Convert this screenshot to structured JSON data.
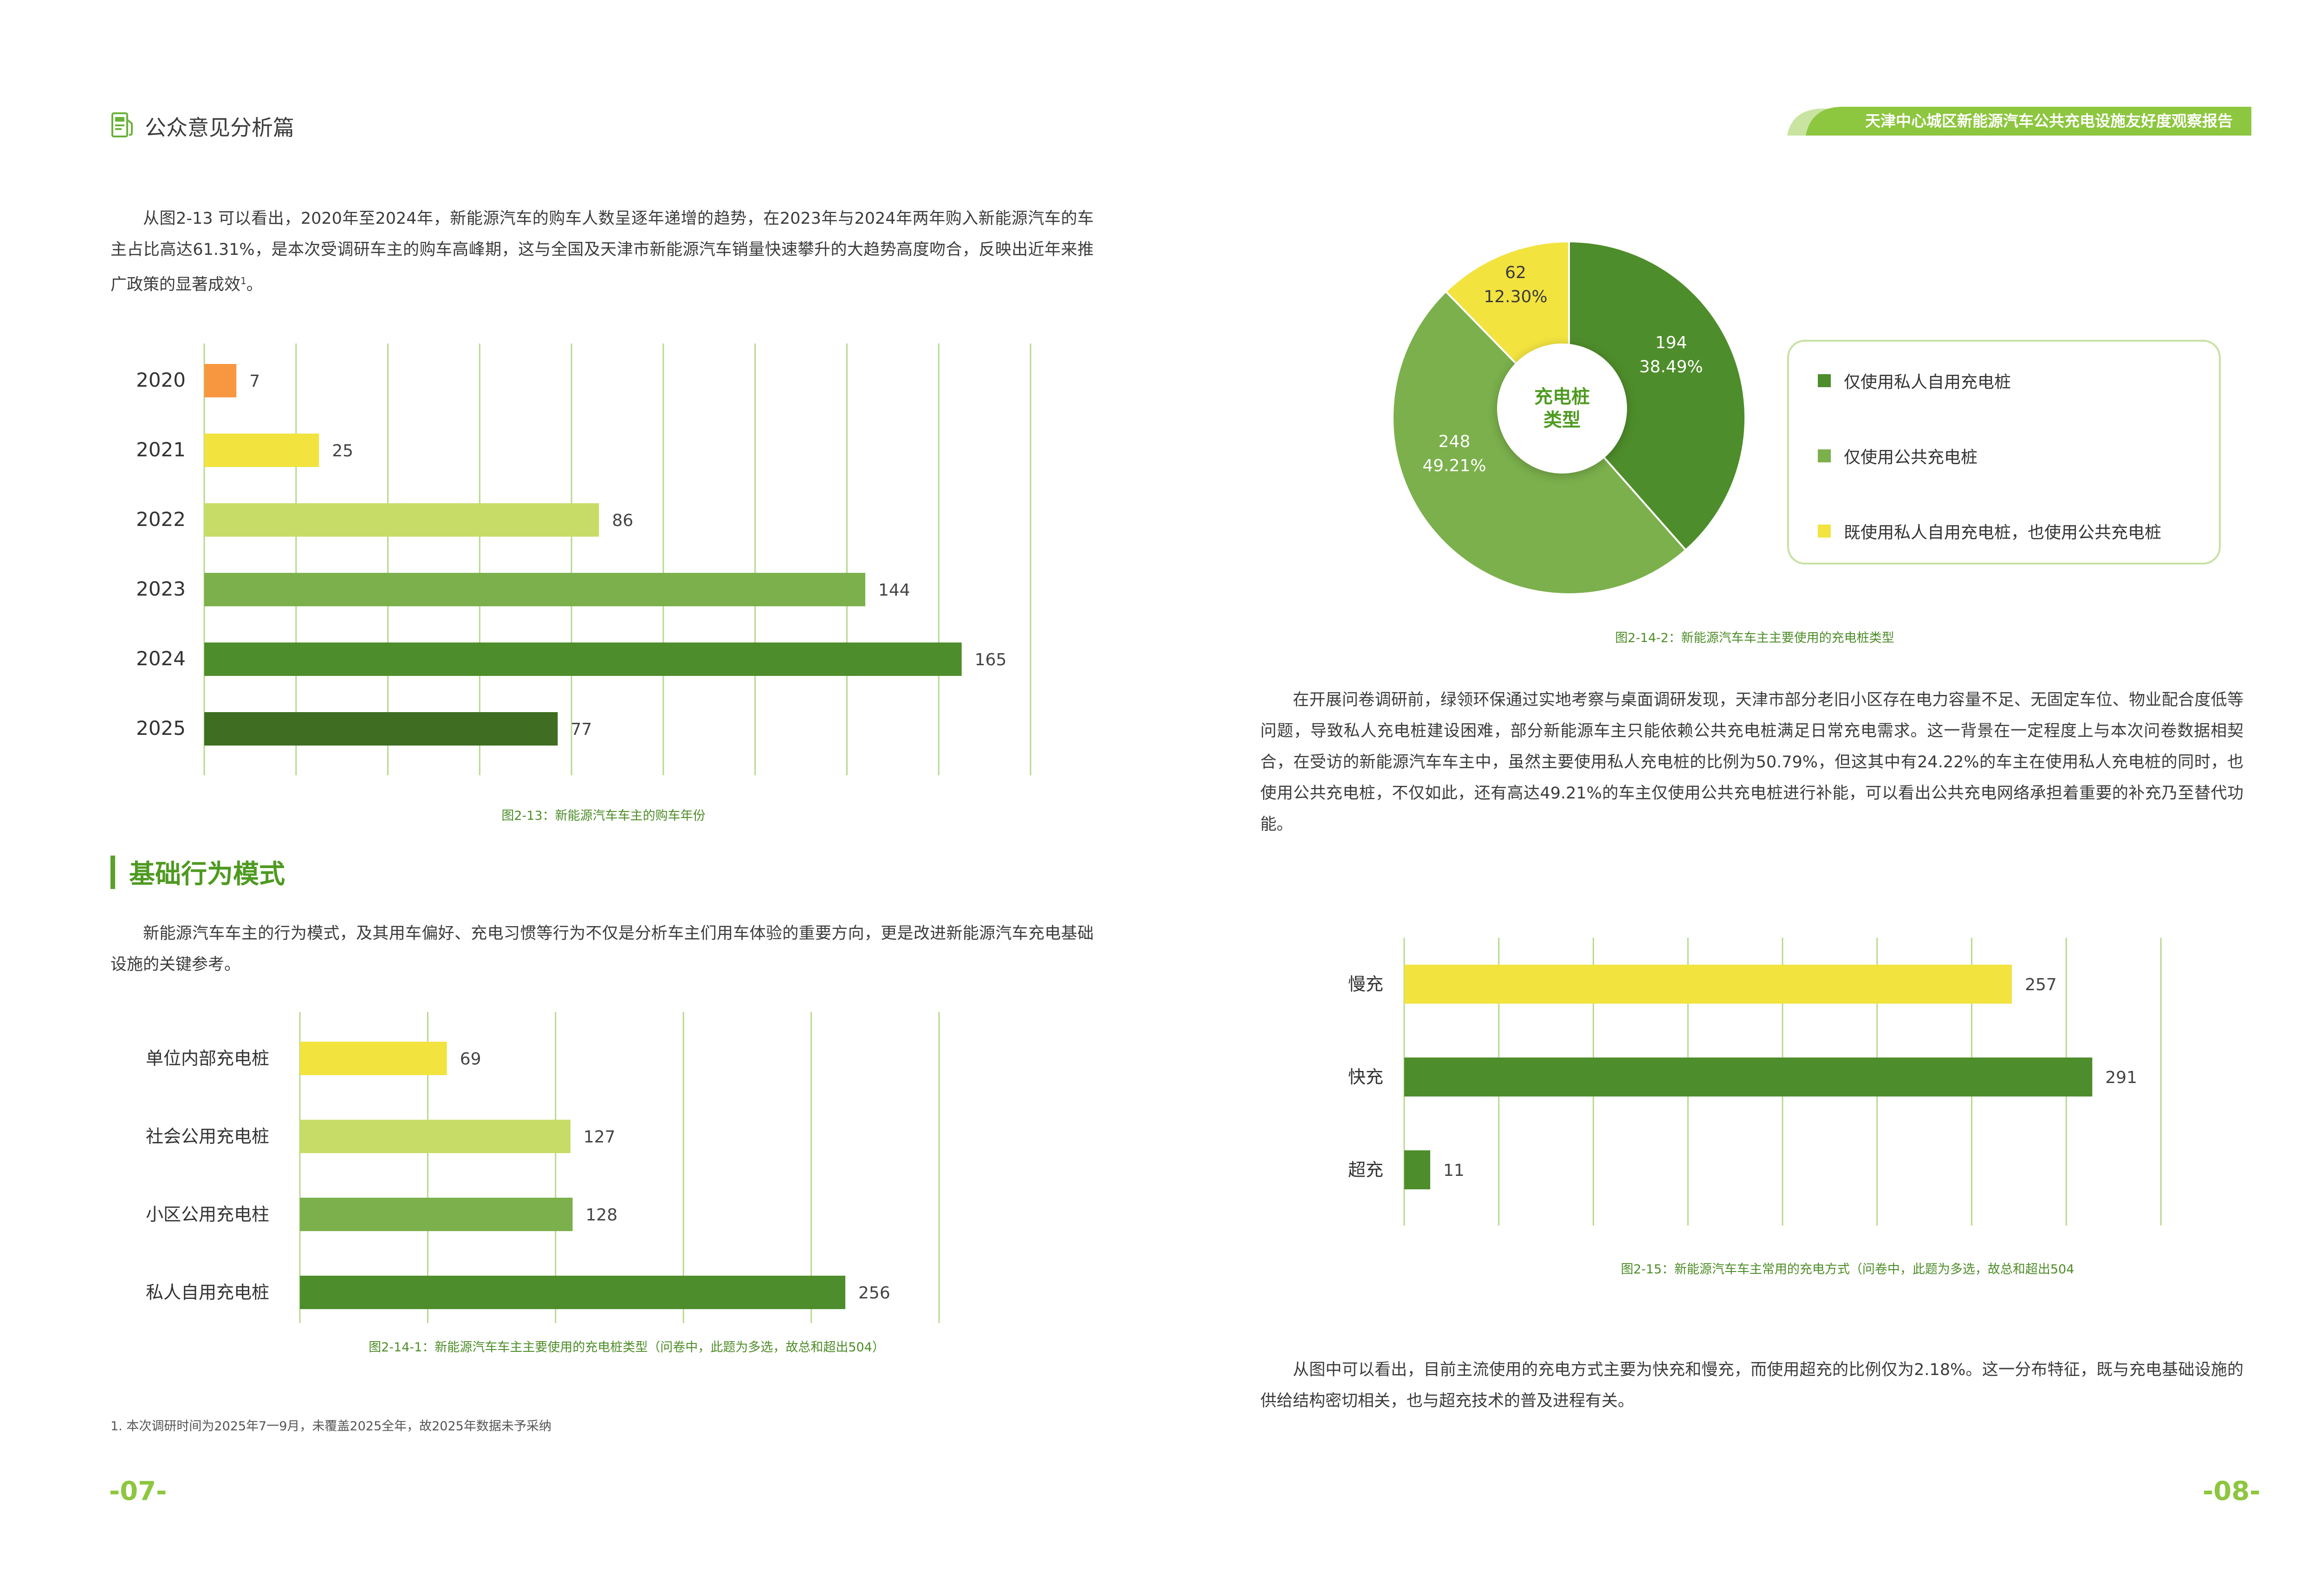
{
  "header": {
    "section_title": "公众意见分析篇",
    "icon": "fuel-pump-document-icon",
    "report_title": "天津中心城区新能源汽车公共充电设施友好度观察报告"
  },
  "left": {
    "intro_paragraph": "从图2-13 可以看出，2020年至2024年，新能源汽车的购车人数呈逐年递增的趋势，在2023年与2024年两年购入新能源汽车的车主占比高达61.31%，是本次受调研车主的购车高峰期，这与全国及天津市新能源汽车销量快速攀升的大趋势高度吻合，反映出近年来推广政策的显著成效",
    "intro_footnote_mark": "1",
    "intro_end": "。",
    "fig_2_13_caption": "图2-13：新能源汽车车主的购车年份",
    "heading_basic": "基础行为模式",
    "behavior_paragraph": "新能源汽车车主的行为模式，及其用车偏好、充电习惯等行为不仅是分析车主们用车体验的重要方向，更是改进新能源汽车充电基础设施的关键参考。",
    "fig_2_14_1_caption": "图2-14-1：新能源汽车车主主要使用的充电桩类型（问卷中，此题为多选，故总和超出504）",
    "footnote": "1. 本次调研时间为2025年7一9月，未覆盖2025全年，故2025年数据未予采纳",
    "page_number": "-07-"
  },
  "right": {
    "pie_center_line1": "充电桩",
    "pie_center_line2": "类型",
    "fig_2_14_2_caption": "图2-14-2：新能源汽车车主主要使用的充电桩类型",
    "analysis_paragraph": "在开展问卷调研前，绿领环保通过实地考察与桌面调研发现，天津市部分老旧小区存在电力容量不足、无固定车位、物业配合度低等问题，导致私人充电桩建设困难，部分新能源车主只能依赖公共充电桩满足日常充电需求。这一背景在一定程度上与本次问卷数据相契合，在受访的新能源汽车车主中，虽然主要使用私人充电桩的比例为50.79%，但这其中有24.22%的车主在使用私人充电桩的同时，也使用公共充电桩，不仅如此，还有高达49.21%的车主仅使用公共充电桩进行补能，可以看出公共充电网络承担着重要的补充乃至替代功能。",
    "fig_2_15_caption": "图2-15：新能源汽车车主常用的充电方式（问卷中，此题为多选，故总和超出504",
    "conclusion_paragraph": "从图中可以看出，目前主流使用的充电方式主要为快充和慢充，而使用超充的比例仅为2.18%。这一分布特征，既与充电基础设施的供给结构密切相关，也与超充技术的普及进程有关。",
    "page_number": "-08-"
  },
  "colors": {
    "orange": "#f7973f",
    "yellow": "#f2e33f",
    "light_green": "#c7dc66",
    "mid_green": "#7bb04c",
    "green": "#4e8d2b",
    "dark_green": "#3f6e22",
    "accent": "#8dc63f"
  },
  "chart_data": [
    {
      "id": "fig-2-13",
      "type": "bar",
      "orientation": "horizontal",
      "categories": [
        "2020",
        "2021",
        "2022",
        "2023",
        "2024",
        "2025"
      ],
      "values": [
        7,
        25,
        86,
        144,
        165,
        77
      ],
      "colors": [
        "#f7973f",
        "#f2e33f",
        "#c7dc66",
        "#7bb04c",
        "#4e8d2b",
        "#3f6e22"
      ],
      "xlim": [
        0,
        180
      ],
      "grid": true,
      "title": "图2-13：新能源汽车车主的购车年份"
    },
    {
      "id": "fig-2-14-1",
      "type": "bar",
      "orientation": "horizontal",
      "categories": [
        "单位内部充电桩",
        "社会公用充电桩",
        "小区公用充电柱",
        "私人自用充电桩"
      ],
      "values": [
        69,
        127,
        128,
        256
      ],
      "colors": [
        "#f2e33f",
        "#c7dc66",
        "#7bb04c",
        "#4e8d2b"
      ],
      "xlim": [
        0,
        300
      ],
      "grid": true,
      "title": "图2-14-1：新能源汽车车主主要使用的充电桩类型（问卷中，此题为多选，故总和超出504）"
    },
    {
      "id": "fig-2-14-2",
      "type": "pie",
      "slices": [
        {
          "name": "仅使用私人自用充电桩",
          "value": 194,
          "percent": "38.49%",
          "color": "#4e8d2b"
        },
        {
          "name": "仅使用公共充电桩",
          "value": 248,
          "percent": "49.21%",
          "color": "#7bb04c"
        },
        {
          "name": "既使用私人自用充电桩，也使用公共充电桩",
          "value": 62,
          "percent": "12.30%",
          "color": "#f2e33f"
        }
      ],
      "legend": "right",
      "title": "图2-14-2：新能源汽车车主主要使用的充电桩类型"
    },
    {
      "id": "fig-2-15",
      "type": "bar",
      "orientation": "horizontal",
      "categories": [
        "慢充",
        "快充",
        "超充"
      ],
      "values": [
        257,
        291,
        11
      ],
      "colors": [
        "#f2e33f",
        "#4e8d2b",
        "#4e8d2b"
      ],
      "xlim": [
        0,
        320
      ],
      "grid": true,
      "title": "图2-15：新能源汽车车主常用的充电方式（问卷中，此题为多选，故总和超出504"
    }
  ]
}
